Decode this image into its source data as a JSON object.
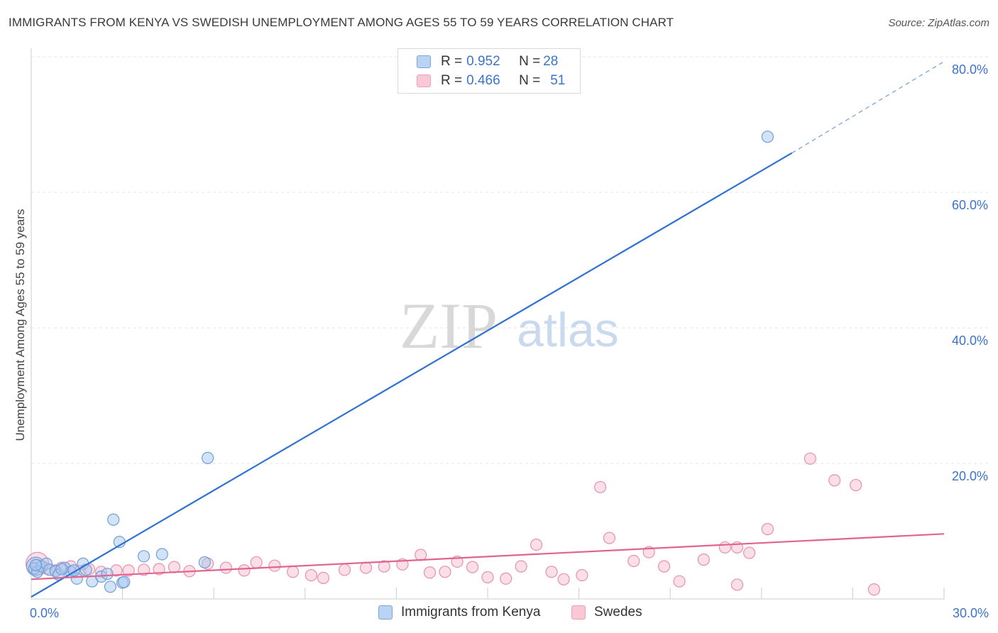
{
  "header": {
    "title": "IMMIGRANTS FROM KENYA VS SWEDISH UNEMPLOYMENT AMONG AGES 55 TO 59 YEARS CORRELATION CHART",
    "source": "Source: ZipAtlas.com"
  },
  "watermark": {
    "zip": "ZIP",
    "atlas": "atlas"
  },
  "legend": {
    "kenya": {
      "r_label": "R = ",
      "r_value": "0.952",
      "n_label": "N = ",
      "n_value": "28"
    },
    "swedes": {
      "r_label": "R = ",
      "r_value": "0.466",
      "n_label": "N = ",
      "n_value": "51"
    }
  },
  "colors": {
    "kenya_fill": "#a8c8f0",
    "kenya_stroke": "#6f9fd8",
    "kenya_line": "#2f72d0",
    "swedes_fill": "#f7b8cb",
    "swedes_stroke": "#e98fae",
    "swedes_line": "#e0648e",
    "axis_text": "#3b74c8",
    "grid": "#e6e6e6"
  },
  "chart_data": {
    "type": "scatter",
    "title": "IMMIGRANTS FROM KENYA VS SWEDISH UNEMPLOYMENT AMONG AGES 55 TO 59 YEARS CORRELATION CHART",
    "xlabel": "",
    "ylabel": "Unemployment Among Ages 55 to 59 years",
    "xlim": [
      0,
      30
    ],
    "ylim": [
      0,
      80
    ],
    "x_tick_labels": {
      "left": "0.0%",
      "right": "30.0%"
    },
    "y_ticks": [
      20,
      40,
      60,
      80
    ],
    "y_tick_labels": [
      "20.0%",
      "40.0%",
      "60.0%",
      "80.0%"
    ],
    "series": [
      {
        "name": "Immigrants from Kenya",
        "points": [
          [
            0.1,
            4.5
          ],
          [
            0.2,
            4.0
          ],
          [
            0.35,
            4.8
          ],
          [
            0.5,
            5.2
          ],
          [
            0.6,
            4.3
          ],
          [
            0.8,
            4.1
          ],
          [
            0.9,
            3.6
          ],
          [
            1.1,
            4.6
          ],
          [
            1.3,
            4.0
          ],
          [
            1.5,
            3.0
          ],
          [
            1.7,
            5.2
          ],
          [
            1.8,
            4.3
          ],
          [
            2.0,
            2.6
          ],
          [
            2.3,
            3.3
          ],
          [
            2.5,
            3.7
          ],
          [
            2.6,
            1.8
          ],
          [
            2.7,
            11.7
          ],
          [
            2.9,
            8.4
          ],
          [
            3.0,
            2.4
          ],
          [
            3.05,
            2.5
          ],
          [
            3.7,
            6.3
          ],
          [
            4.3,
            6.6
          ],
          [
            5.7,
            5.4
          ],
          [
            5.8,
            20.8
          ],
          [
            24.2,
            68.2
          ],
          [
            0.15,
            5.0
          ],
          [
            1.0,
            4.4
          ],
          [
            1.4,
            4.2
          ]
        ],
        "trend": {
          "x": [
            0,
            25.0
          ],
          "y": [
            0.3,
            65.8
          ],
          "dashed_to": [
            30.0,
            79.3
          ]
        }
      },
      {
        "name": "Swedes",
        "points": [
          [
            0.2,
            5.0
          ],
          [
            0.5,
            4.5
          ],
          [
            0.8,
            4.2
          ],
          [
            1.0,
            4.6
          ],
          [
            1.3,
            4.8
          ],
          [
            1.6,
            4.1
          ],
          [
            1.9,
            4.4
          ],
          [
            2.3,
            4.0
          ],
          [
            2.8,
            4.2
          ],
          [
            3.2,
            4.2
          ],
          [
            3.7,
            4.3
          ],
          [
            4.2,
            4.4
          ],
          [
            4.7,
            4.7
          ],
          [
            5.2,
            4.1
          ],
          [
            5.8,
            5.2
          ],
          [
            6.4,
            4.6
          ],
          [
            7.0,
            4.2
          ],
          [
            7.4,
            5.4
          ],
          [
            8.0,
            4.9
          ],
          [
            8.6,
            4.0
          ],
          [
            9.2,
            3.5
          ],
          [
            9.6,
            3.1
          ],
          [
            10.3,
            4.3
          ],
          [
            11.0,
            4.6
          ],
          [
            11.6,
            4.8
          ],
          [
            12.2,
            5.1
          ],
          [
            12.8,
            6.5
          ],
          [
            13.1,
            3.9
          ],
          [
            13.6,
            4.0
          ],
          [
            14.0,
            5.5
          ],
          [
            14.5,
            4.7
          ],
          [
            15.0,
            3.2
          ],
          [
            15.6,
            3.0
          ],
          [
            16.1,
            4.8
          ],
          [
            16.6,
            8.0
          ],
          [
            17.1,
            4.0
          ],
          [
            17.5,
            2.9
          ],
          [
            18.1,
            3.5
          ],
          [
            18.7,
            16.5
          ],
          [
            19.0,
            9.0
          ],
          [
            19.8,
            5.6
          ],
          [
            20.3,
            6.9
          ],
          [
            20.8,
            4.8
          ],
          [
            21.3,
            2.6
          ],
          [
            22.1,
            5.8
          ],
          [
            22.8,
            7.6
          ],
          [
            23.2,
            7.6
          ],
          [
            23.6,
            6.8
          ],
          [
            24.2,
            10.3
          ],
          [
            25.6,
            20.7
          ],
          [
            26.4,
            17.5
          ]
        ],
        "extra_points": [
          [
            27.1,
            16.8
          ],
          [
            27.7,
            1.4
          ],
          [
            23.2,
            2.1
          ]
        ],
        "trend": {
          "x": [
            0,
            30.0
          ],
          "y": [
            2.9,
            9.6
          ]
        }
      }
    ],
    "legend_entries": [
      "Immigrants from Kenya",
      "Swedes"
    ]
  }
}
